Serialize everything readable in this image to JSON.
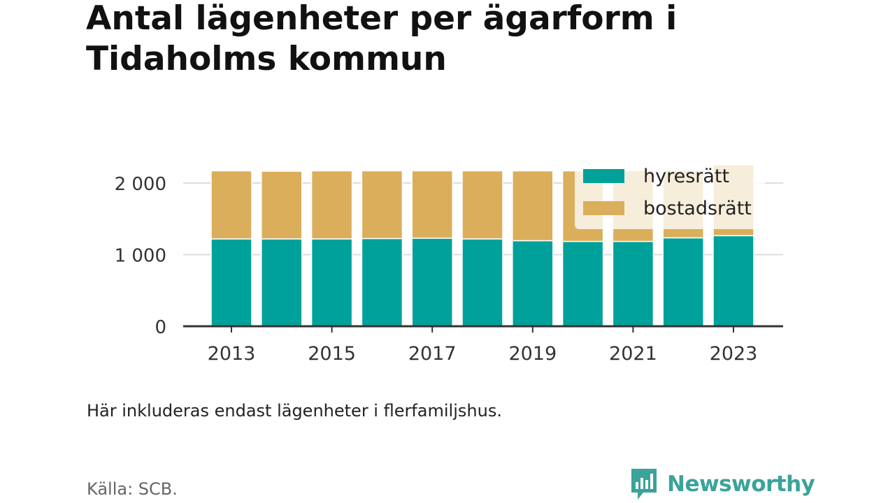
{
  "title": "Antal lägenheter per ägarform i Tidaholms kommun",
  "note": "Här inkluderas endast lägenheter i flerfamiljshus.",
  "source": "Källa: SCB.",
  "brand": {
    "name": "Newsworthy",
    "color": "#3aa39a",
    "icon": "bar-chart-speech-bubble-icon"
  },
  "colors": {
    "hyresratt": "#00a19a",
    "bostadsratt": "#dbae5b",
    "axis": "#333333",
    "grid": "#dddddd"
  },
  "chart_data": {
    "type": "bar",
    "stacked": true,
    "title": "Antal lägenheter per ägarform i Tidaholms kommun",
    "xlabel": "",
    "ylabel": "",
    "x": [
      2013,
      2014,
      2015,
      2016,
      2017,
      2018,
      2019,
      2020,
      2021,
      2022,
      2023
    ],
    "x_tick_labels": [
      "2013",
      "2015",
      "2017",
      "2019",
      "2021",
      "2023"
    ],
    "y_tick_values": [
      0,
      1000,
      2000
    ],
    "y_tick_labels": [
      "0",
      "1 000",
      "2 000"
    ],
    "ylim": [
      0,
      2280
    ],
    "grid": true,
    "legend_position": "top-right",
    "series": [
      {
        "name": "hyresrätt",
        "color": "#00a19a",
        "values": [
          1220,
          1220,
          1220,
          1225,
          1230,
          1220,
          1195,
          1185,
          1185,
          1235,
          1265
        ]
      },
      {
        "name": "bostadsrätt",
        "color": "#dbae5b",
        "values": [
          950,
          945,
          950,
          945,
          940,
          950,
          975,
          985,
          990,
          940,
          990
        ]
      }
    ]
  }
}
